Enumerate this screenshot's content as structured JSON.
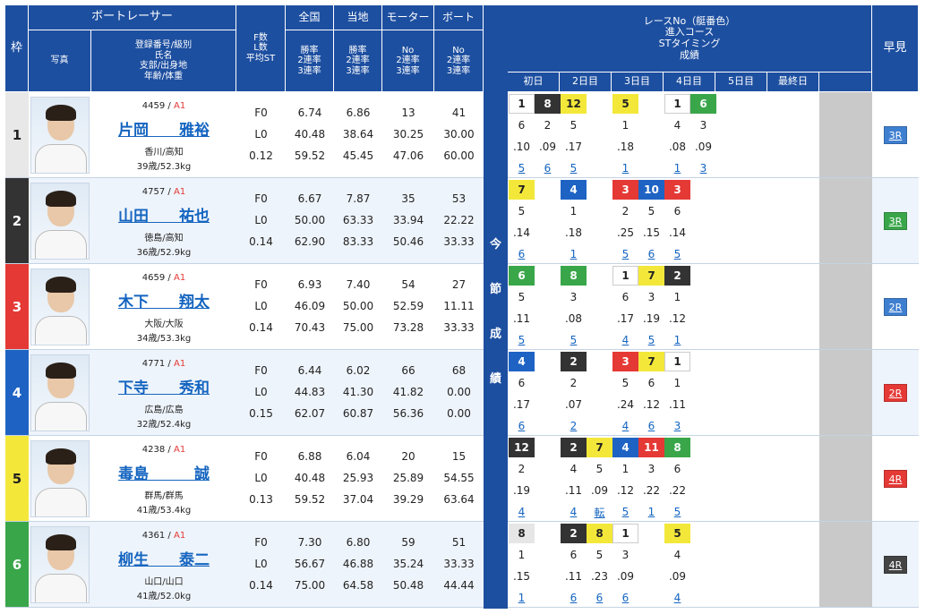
{
  "header": {
    "waku": "枠",
    "photo": "写真",
    "racer": "ボートレーサー",
    "racer_sub": [
      "登録番号/級別",
      "氏名",
      "支部/出身地",
      "年齢/体重"
    ],
    "fl": [
      "F数",
      "L数",
      "平均ST"
    ],
    "zenkoku": "全国",
    "zenkoku_sub": [
      "勝率",
      "2連率",
      "3連率"
    ],
    "touchi": "当地",
    "touchi_sub": [
      "勝率",
      "2連率",
      "3連率"
    ],
    "motor": "モーター",
    "motor_sub": [
      "No",
      "2連率",
      "3連率"
    ],
    "boat": "ボート",
    "boat_sub": [
      "No",
      "2連率",
      "3連率"
    ],
    "race": [
      "レースNo（艇番色）",
      "進入コース",
      "STタイミング",
      "成績"
    ],
    "days": [
      "初日",
      "2日目",
      "3日目",
      "4日目",
      "5日目",
      "最終日"
    ],
    "vertical": [
      "今",
      "節",
      "成",
      "績"
    ],
    "hayami": "早見"
  },
  "colors": {
    "1": "#ffffff",
    "2": "#333333",
    "3": "#e53935",
    "4": "#1e63c4",
    "5": "#f3e83a",
    "6": "#3aa64a"
  },
  "racers": [
    {
      "frame": "1",
      "frame_color": "#ffffff",
      "id": "4459",
      "class": "A1",
      "name": "片岡　　雅裕",
      "area": "香川/高知",
      "age": "39歳/52.3kg",
      "f": "F0",
      "l": "L0",
      "st": "0.12",
      "zen": [
        "6.74",
        "40.48",
        "59.52"
      ],
      "tou": [
        "6.86",
        "38.64",
        "45.45"
      ],
      "mot": [
        "13",
        "30.25",
        "47.06"
      ],
      "boa": [
        "41",
        "30.00",
        "60.00"
      ],
      "results": [
        {
          "b": "1",
          "c": "6",
          "t": ".10",
          "r": "5"
        },
        {
          "b": "8",
          "c": "2",
          "t": ".09",
          "r": "6"
        },
        {
          "b": "12",
          "c": "5",
          "t": ".17",
          "r": "5"
        },
        null,
        {
          "b": "5",
          "c": "1",
          "t": ".18",
          "r": "1"
        },
        null,
        {
          "b": "1",
          "c": "4",
          "t": ".08",
          "r": "1"
        },
        {
          "b": "6",
          "c": "3",
          "t": ".09",
          "r": "3"
        }
      ],
      "hayami": "3R",
      "hayami_color": "#3f7fd0"
    },
    {
      "frame": "2",
      "frame_color": "#333333",
      "id": "4757",
      "class": "A1",
      "name": "山田　　祐也",
      "area": "徳島/高知",
      "age": "36歳/52.9kg",
      "f": "F0",
      "l": "L0",
      "st": "0.14",
      "zen": [
        "6.67",
        "50.00",
        "62.90"
      ],
      "tou": [
        "7.87",
        "63.33",
        "83.33"
      ],
      "mot": [
        "35",
        "33.94",
        "50.46"
      ],
      "boa": [
        "53",
        "22.22",
        "33.33"
      ],
      "results": [
        {
          "b": "7",
          "c": "5",
          "t": ".14",
          "r": "6"
        },
        null,
        {
          "b": "4",
          "c": "1",
          "t": ".18",
          "r": "1"
        },
        null,
        {
          "b": "3",
          "c": "2",
          "t": ".25",
          "r": "5"
        },
        {
          "b": "10",
          "c": "5",
          "t": ".15",
          "r": "6"
        },
        {
          "b": "3",
          "c": "6",
          "t": ".14",
          "r": "5"
        },
        null
      ],
      "hayami": "3R",
      "hayami_color": "#3aa64a"
    },
    {
      "frame": "3",
      "frame_color": "#e53935",
      "id": "4659",
      "class": "A1",
      "name": "木下　　翔太",
      "area": "大阪/大阪",
      "age": "34歳/53.3kg",
      "f": "F0",
      "l": "L0",
      "st": "0.14",
      "zen": [
        "6.93",
        "46.09",
        "70.43"
      ],
      "tou": [
        "7.40",
        "50.00",
        "75.00"
      ],
      "mot": [
        "54",
        "52.59",
        "73.28"
      ],
      "boa": [
        "27",
        "11.11",
        "33.33"
      ],
      "results": [
        {
          "b": "6",
          "c": "5",
          "t": ".11",
          "r": "5"
        },
        null,
        {
          "b": "8",
          "c": "3",
          "t": ".08",
          "r": "5"
        },
        null,
        {
          "b": "1",
          "c": "6",
          "t": ".17",
          "r": "4"
        },
        {
          "b": "7",
          "c": "3",
          "t": ".19",
          "r": "5"
        },
        {
          "b": "2",
          "c": "1",
          "t": ".12",
          "r": "1"
        },
        null
      ],
      "hayami": "2R",
      "hayami_color": "#3f7fd0"
    },
    {
      "frame": "4",
      "frame_color": "#1e63c4",
      "id": "4771",
      "class": "A1",
      "name": "下寺　　秀和",
      "area": "広島/広島",
      "age": "32歳/52.4kg",
      "f": "F0",
      "l": "L0",
      "st": "0.15",
      "zen": [
        "6.44",
        "44.83",
        "62.07"
      ],
      "tou": [
        "6.02",
        "41.30",
        "60.87"
      ],
      "mot": [
        "66",
        "41.82",
        "56.36"
      ],
      "boa": [
        "68",
        "0.00",
        "0.00"
      ],
      "results": [
        {
          "b": "4",
          "c": "6",
          "t": ".17",
          "r": "6"
        },
        null,
        {
          "b": "2",
          "c": "2",
          "t": ".07",
          "r": "2"
        },
        null,
        {
          "b": "3",
          "c": "5",
          "t": ".24",
          "r": "4"
        },
        {
          "b": "7",
          "c": "6",
          "t": ".12",
          "r": "6"
        },
        {
          "b": "1",
          "c": "1",
          "t": ".11",
          "r": "3"
        },
        null
      ],
      "hayami": "2R",
      "hayami_color": "#e53935"
    },
    {
      "frame": "5",
      "frame_color": "#f3e83a",
      "id": "4238",
      "class": "A1",
      "name": "毒島　　　誠",
      "area": "群馬/群馬",
      "age": "41歳/53.4kg",
      "f": "F0",
      "l": "L0",
      "st": "0.13",
      "zen": [
        "6.88",
        "40.48",
        "59.52"
      ],
      "tou": [
        "6.04",
        "25.93",
        "37.04"
      ],
      "mot": [
        "20",
        "25.89",
        "39.29"
      ],
      "boa": [
        "15",
        "54.55",
        "63.64"
      ],
      "results": [
        {
          "b": "12",
          "c": "2",
          "t": ".19",
          "r": "4"
        },
        null,
        {
          "b": "2",
          "c": "4",
          "t": ".11",
          "r": "4"
        },
        {
          "b": "7",
          "c": "5",
          "t": ".09",
          "r": "転"
        },
        {
          "b": "4",
          "c": "1",
          "t": ".12",
          "r": "5"
        },
        {
          "b": "11",
          "c": "3",
          "t": ".22",
          "r": "1"
        },
        {
          "b": "8",
          "c": "6",
          "t": ".22",
          "r": "5"
        },
        null
      ],
      "hayami": "4R",
      "hayami_color": "#e53935"
    },
    {
      "frame": "6",
      "frame_color": "#3aa64a",
      "id": "4361",
      "class": "A1",
      "name": "柳生　　泰二",
      "area": "山口/山口",
      "age": "41歳/52.0kg",
      "f": "F0",
      "l": "L0",
      "st": "0.14",
      "zen": [
        "7.30",
        "56.67",
        "75.00"
      ],
      "tou": [
        "6.80",
        "46.88",
        "64.58"
      ],
      "mot": [
        "59",
        "35.24",
        "50.48"
      ],
      "boa": [
        "51",
        "33.33",
        "44.44"
      ],
      "results": [
        {
          "b": "8",
          "c": "1",
          "t": ".15",
          "r": "1"
        },
        null,
        {
          "b": "2",
          "c": "6",
          "t": ".11",
          "r": "6"
        },
        {
          "b": "8",
          "c": "5",
          "t": ".23",
          "r": "6"
        },
        {
          "b": "1",
          "c": "3",
          "t": ".09",
          "r": "6"
        },
        null,
        {
          "b": "5",
          "c": "4",
          "t": ".09",
          "r": "4"
        },
        null
      ],
      "hayami": "4R",
      "hayami_color": "#444444"
    }
  ]
}
